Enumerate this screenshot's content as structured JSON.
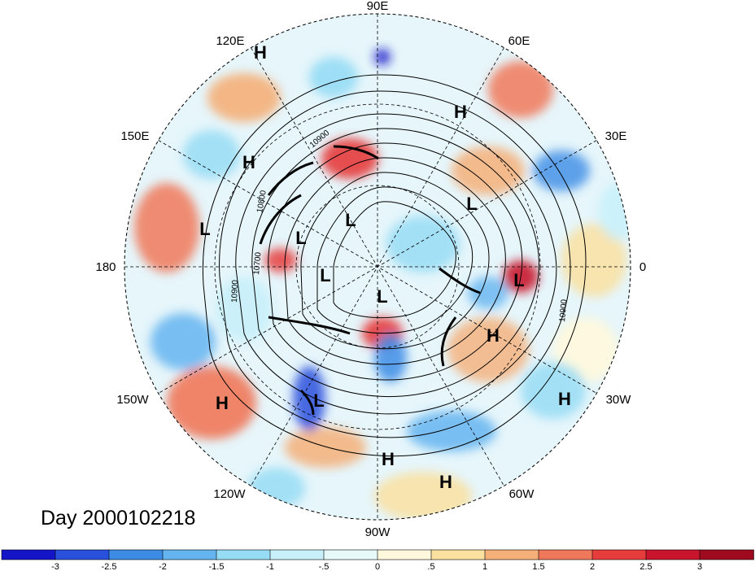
{
  "map": {
    "projection": "polar stereographic",
    "hemisphere": "northern",
    "date_label": "Day 2000102218",
    "longitude_labels": [
      "90E",
      "60E",
      "30E",
      "0",
      "30W",
      "60W",
      "90W",
      "120W",
      "150W",
      "180",
      "150E",
      "120E"
    ],
    "contour_labels": [
      "10900",
      "10800",
      "10700",
      "10900",
      "10900"
    ],
    "pressure_centers": [
      {
        "type": "H",
        "label": "H"
      },
      {
        "type": "H",
        "label": "H"
      },
      {
        "type": "H",
        "label": "H"
      },
      {
        "type": "L",
        "label": "L"
      },
      {
        "type": "L",
        "label": "L"
      },
      {
        "type": "L",
        "label": "L"
      },
      {
        "type": "L",
        "label": "L"
      },
      {
        "type": "L",
        "label": "L"
      },
      {
        "type": "L",
        "label": "L"
      },
      {
        "type": "L",
        "label": "L"
      },
      {
        "type": "H",
        "label": "H"
      },
      {
        "type": "H",
        "label": "H"
      },
      {
        "type": "H",
        "label": "H"
      },
      {
        "type": "L",
        "label": "L"
      },
      {
        "type": "H",
        "label": "H"
      },
      {
        "type": "H",
        "label": "H"
      }
    ]
  },
  "colorbar": {
    "labels": [
      "-3",
      "-2.5",
      "-2",
      "-1.5",
      "-1",
      "-.5",
      "0",
      ".5",
      "1",
      "1.5",
      "2",
      "2.5",
      "3"
    ],
    "colors": [
      "#1414c8",
      "#2850dc",
      "#3c8ce6",
      "#64b4f0",
      "#96dcf5",
      "#c8f0fa",
      "#e6fafa",
      "#fff8dc",
      "#fae1a0",
      "#f5af78",
      "#f0785a",
      "#e63c3c",
      "#c8142d",
      "#a00a1e"
    ]
  }
}
